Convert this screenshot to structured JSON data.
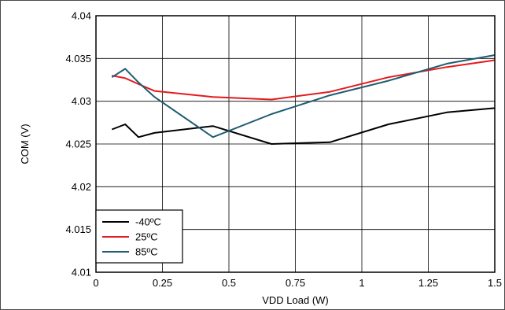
{
  "chart_data": {
    "type": "line",
    "title": "",
    "xlabel": "VDD Load (W)",
    "ylabel": "COM (V)",
    "xlim": [
      0,
      1.5
    ],
    "ylim": [
      4.01,
      4.04
    ],
    "xticks": [
      "0",
      "0.25",
      "0.5",
      "0.75",
      "1",
      "1.25",
      "1.5"
    ],
    "xtick_values": [
      0,
      0.25,
      0.5,
      0.75,
      1,
      1.25,
      1.5
    ],
    "yticks": [
      "4.01",
      "4.015",
      "4.02",
      "4.025",
      "4.03",
      "4.035",
      "4.04"
    ],
    "ytick_values": [
      4.01,
      4.015,
      4.02,
      4.025,
      4.03,
      4.035,
      4.04
    ],
    "grid": true,
    "legend_position": "bottom-left",
    "series": [
      {
        "name": "-40ºC",
        "color": "#000000",
        "x": [
          0.06,
          0.11,
          0.16,
          0.22,
          0.44,
          0.66,
          0.88,
          1.1,
          1.32,
          1.5
        ],
        "y": [
          4.0267,
          4.0273,
          4.0258,
          4.0263,
          4.0271,
          4.025,
          4.0252,
          4.0273,
          4.0287,
          4.0292
        ]
      },
      {
        "name": "25ºC",
        "color": "#e41a1c",
        "x": [
          0.06,
          0.11,
          0.16,
          0.22,
          0.44,
          0.66,
          0.88,
          1.1,
          1.32,
          1.5
        ],
        "y": [
          4.033,
          4.0327,
          4.032,
          4.0312,
          4.0305,
          4.0302,
          4.0311,
          4.0328,
          4.034,
          4.0348
        ]
      },
      {
        "name": "85ºC",
        "color": "#1f5c72",
        "x": [
          0.06,
          0.11,
          0.16,
          0.22,
          0.44,
          0.66,
          0.88,
          1.1,
          1.32,
          1.5
        ],
        "y": [
          4.0328,
          4.0338,
          4.0322,
          4.0305,
          4.0258,
          4.0285,
          4.0307,
          4.0324,
          4.0344,
          4.0354
        ]
      }
    ]
  }
}
